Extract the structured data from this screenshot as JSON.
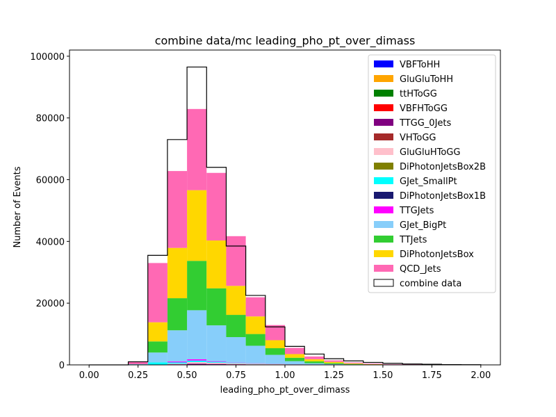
{
  "chart_data": {
    "type": "bar",
    "subtype": "stacked-step-histogram",
    "title": "combine data/mc leading_pho_pt_over_dimass",
    "xlabel": "leading_pho_pt_over_dimass",
    "ylabel": "Number of Events",
    "xlim": [
      -0.1,
      2.1
    ],
    "ylim": [
      0,
      102000
    ],
    "x_ticks": [
      "0.00",
      "0.25",
      "0.50",
      "0.75",
      "1.00",
      "1.25",
      "1.50",
      "1.75",
      "2.00"
    ],
    "y_ticks": [
      "0",
      "20000",
      "40000",
      "60000",
      "80000",
      "100000"
    ],
    "bin_edges": [
      0.0,
      0.1,
      0.2,
      0.3,
      0.4,
      0.5,
      0.6,
      0.7,
      0.8,
      0.9,
      1.0,
      1.1,
      1.2,
      1.3,
      1.4,
      1.5,
      1.6,
      1.7,
      1.8,
      1.9,
      2.0
    ],
    "legend_position": "upper right",
    "grid": false,
    "series": [
      {
        "name": "VBFToHH",
        "color": "#0000ff",
        "values": [
          0,
          0,
          0,
          0,
          0,
          0,
          0,
          0,
          0,
          0,
          0,
          0,
          0,
          0,
          0,
          0,
          0,
          0,
          0,
          0
        ]
      },
      {
        "name": "GluGluToHH",
        "color": "#ffa500",
        "values": [
          0,
          0,
          0,
          0,
          0,
          0,
          0,
          0,
          0,
          0,
          0,
          0,
          0,
          0,
          0,
          0,
          0,
          0,
          0,
          0
        ]
      },
      {
        "name": "ttHToGG",
        "color": "#008000",
        "values": [
          0,
          0,
          0,
          0,
          0,
          0,
          0,
          0,
          0,
          0,
          0,
          0,
          0,
          0,
          0,
          0,
          0,
          0,
          0,
          0
        ]
      },
      {
        "name": "VBFHToGG",
        "color": "#ff0000",
        "values": [
          0,
          0,
          0,
          0,
          0,
          0,
          0,
          0,
          0,
          0,
          0,
          0,
          0,
          0,
          0,
          0,
          0,
          0,
          0,
          0
        ]
      },
      {
        "name": "TTGG_0Jets",
        "color": "#800080",
        "values": [
          0,
          0,
          0,
          0,
          200,
          400,
          300,
          200,
          150,
          100,
          50,
          30,
          20,
          10,
          5,
          0,
          0,
          0,
          0,
          0
        ]
      },
      {
        "name": "VHToGG",
        "color": "#a52a2a",
        "values": [
          0,
          0,
          0,
          0,
          0,
          0,
          0,
          0,
          0,
          0,
          0,
          0,
          0,
          0,
          0,
          0,
          0,
          0,
          0,
          0
        ]
      },
      {
        "name": "GluGluHToGG",
        "color": "#ffc0cb",
        "values": [
          0,
          0,
          0,
          0,
          200,
          500,
          400,
          300,
          200,
          150,
          100,
          50,
          30,
          20,
          10,
          5,
          0,
          0,
          0,
          0
        ]
      },
      {
        "name": "DiPhotonJetsBox2B",
        "color": "#808000",
        "values": [
          0,
          0,
          0,
          0,
          0,
          0,
          0,
          0,
          0,
          0,
          0,
          0,
          0,
          0,
          0,
          0,
          0,
          0,
          0,
          0
        ]
      },
      {
        "name": "GJet_SmallPt",
        "color": "#00ffff",
        "values": [
          0,
          0,
          200,
          800,
          400,
          500,
          300,
          150,
          80,
          50,
          30,
          20,
          10,
          5,
          0,
          0,
          0,
          0,
          0,
          0
        ]
      },
      {
        "name": "DiPhotonJetsBox1B",
        "color": "#191970",
        "values": [
          0,
          0,
          0,
          0,
          0,
          0,
          0,
          0,
          0,
          0,
          0,
          0,
          0,
          0,
          0,
          0,
          0,
          0,
          0,
          0
        ]
      },
      {
        "name": "TTGJets",
        "color": "#ff00ff",
        "values": [
          0,
          0,
          0,
          0,
          300,
          400,
          200,
          100,
          80,
          50,
          30,
          20,
          10,
          5,
          0,
          0,
          0,
          0,
          0,
          0
        ]
      },
      {
        "name": "GJet_BigPt",
        "color": "#87cefa",
        "values": [
          0,
          0,
          0,
          3200,
          10100,
          15900,
          11600,
          8250,
          5690,
          2900,
          1000,
          400,
          200,
          100,
          50,
          20,
          10,
          5,
          0,
          0
        ]
      },
      {
        "name": "TTJets",
        "color": "#32cd32",
        "values": [
          0,
          0,
          0,
          3600,
          10400,
          16000,
          12000,
          7200,
          3800,
          2150,
          1100,
          600,
          300,
          150,
          80,
          40,
          20,
          10,
          5,
          0
        ]
      },
      {
        "name": "DiPhotonJetsBox",
        "color": "#ffd700",
        "values": [
          0,
          0,
          0,
          6200,
          16300,
          22900,
          15500,
          9400,
          5700,
          2600,
          1190,
          700,
          400,
          200,
          100,
          50,
          30,
          15,
          5,
          0
        ]
      },
      {
        "name": "QCD_Jets",
        "color": "#ff69b4",
        "values": [
          0,
          0,
          800,
          19200,
          24900,
          26300,
          21900,
          16100,
          6200,
          4900,
          2000,
          900,
          500,
          300,
          200,
          100,
          150,
          80,
          200,
          0
        ]
      }
    ],
    "data_series": {
      "name": "combine data",
      "values": [
        0,
        0,
        1000,
        35500,
        73000,
        96500,
        64000,
        38500,
        22500,
        12300,
        6000,
        3500,
        2000,
        1300,
        800,
        500,
        300,
        200,
        100,
        50
      ]
    }
  }
}
